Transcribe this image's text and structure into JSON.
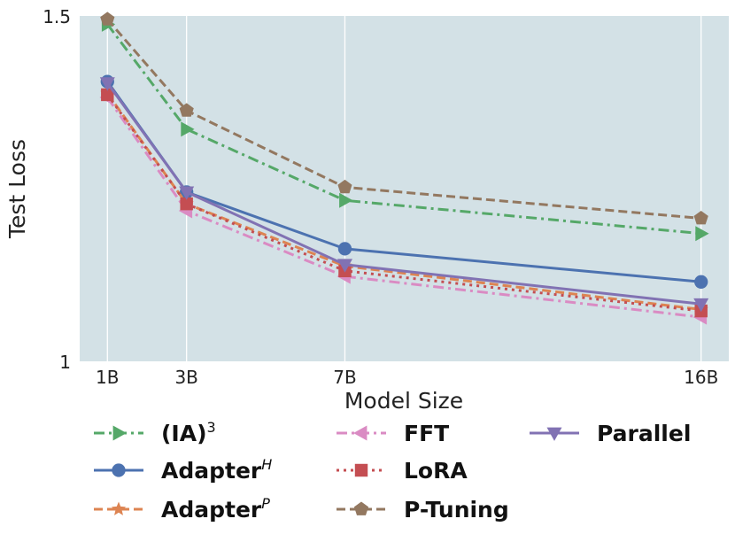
{
  "chart_data": {
    "type": "line",
    "title": "",
    "xlabel": "Model Size",
    "ylabel": "Test Loss",
    "x": [
      1,
      3,
      7,
      16
    ],
    "x_tick_labels": [
      "1B",
      "3B",
      "7B",
      "16B"
    ],
    "xlim": [
      0.3,
      16.7
    ],
    "ylim": [
      1.0,
      1.5
    ],
    "y_ticks": [
      1.0,
      1.5
    ],
    "y_tick_labels": [
      "1",
      "1.5"
    ],
    "grid": "vertical",
    "background": "#d3e1e6",
    "legend_position": "bottom",
    "series": [
      {
        "key": "ia3",
        "name": "(IA)",
        "sup": "3",
        "color": "#55a868",
        "dash": "12,5,3,5",
        "marker": "triangle-right",
        "values": [
          1.488,
          1.336,
          1.233,
          1.185
        ]
      },
      {
        "key": "adapterh",
        "name": "Adapter",
        "sup": "H",
        "color": "#4c72b0",
        "dash": "",
        "marker": "circle",
        "values": [
          1.405,
          1.245,
          1.163,
          1.115
        ]
      },
      {
        "key": "adapterp",
        "name": "Adapter",
        "sup": "P",
        "color": "#dd8452",
        "dash": "10,5",
        "marker": "star",
        "values": [
          1.388,
          1.228,
          1.138,
          1.075
        ]
      },
      {
        "key": "fft",
        "name": "FFT",
        "sup": "",
        "color": "#da8bc3",
        "dash": "12,5,3,5",
        "marker": "triangle-left",
        "values": [
          1.382,
          1.218,
          1.123,
          1.064
        ]
      },
      {
        "key": "lora",
        "name": "LoRA",
        "sup": "",
        "color": "#c44e52",
        "dash": "3,5",
        "marker": "square",
        "values": [
          1.386,
          1.228,
          1.131,
          1.073
        ]
      },
      {
        "key": "ptuning",
        "name": "P-Tuning",
        "sup": "",
        "color": "#937860",
        "dash": "10,5",
        "marker": "pentagon",
        "values": [
          1.495,
          1.363,
          1.252,
          1.207
        ]
      },
      {
        "key": "parallel",
        "name": "Parallel",
        "sup": "",
        "color": "#8172b3",
        "dash": "",
        "marker": "triangle-down",
        "values": [
          1.403,
          1.245,
          1.14,
          1.083
        ]
      }
    ]
  }
}
